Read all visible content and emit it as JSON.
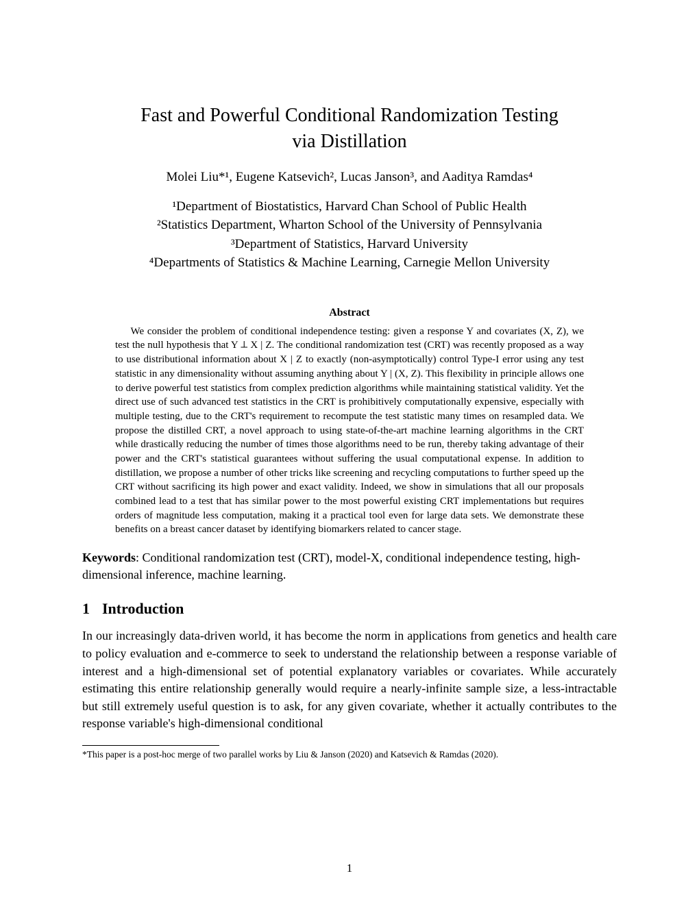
{
  "title_line1": "Fast and Powerful Conditional Randomization Testing",
  "title_line2": "via Distillation",
  "authors_html": "Molei Liu*¹, Eugene Katsevich², Lucas Janson³, and Aaditya Ramdas⁴",
  "affiliations": {
    "a1": "¹Department of Biostatistics, Harvard Chan School of Public Health",
    "a2": "²Statistics Department, Wharton School of the University of Pennsylvania",
    "a3": "³Department of Statistics, Harvard University",
    "a4": "⁴Departments of Statistics & Machine Learning, Carnegie Mellon University"
  },
  "abstract_heading": "Abstract",
  "abstract_text": "We consider the problem of conditional independence testing: given a response Y and covariates (X, Z), we test the null hypothesis that Y ⟂ X | Z. The conditional randomization test (CRT) was recently proposed as a way to use distributional information about X | Z to exactly (non-asymptotically) control Type-I error using any test statistic in any dimensionality without assuming anything about Y | (X, Z). This flexibility in principle allows one to derive powerful test statistics from complex prediction algorithms while maintaining statistical validity. Yet the direct use of such advanced test statistics in the CRT is prohibitively computationally expensive, especially with multiple testing, due to the CRT's requirement to recompute the test statistic many times on resampled data. We propose the distilled CRT, a novel approach to using state-of-the-art machine learning algorithms in the CRT while drastically reducing the number of times those algorithms need to be run, thereby taking advantage of their power and the CRT's statistical guarantees without suffering the usual computational expense. In addition to distillation, we propose a number of other tricks like screening and recycling computations to further speed up the CRT without sacrificing its high power and exact validity. Indeed, we show in simulations that all our proposals combined lead to a test that has similar power to the most powerful existing CRT implementations but requires orders of magnitude less computation, making it a practical tool even for large data sets. We demonstrate these benefits on a breast cancer dataset by identifying biomarkers related to cancer stage.",
  "keywords_label": "Keywords",
  "keywords_text": ": Conditional randomization test (CRT), model-X, conditional independence testing, high-dimensional inference, machine learning.",
  "section1_number": "1",
  "section1_title": "Introduction",
  "intro_text": "In our increasingly data-driven world, it has become the norm in applications from genetics and health care to policy evaluation and e-commerce to seek to understand the relationship between a response variable of interest and a high-dimensional set of potential explanatory variables or covariates. While accurately estimating this entire relationship generally would require a nearly-infinite sample size, a less-intractable but still extremely useful question is to ask, for any given covariate, whether it actually contributes to the response variable's high-dimensional conditional",
  "footnote_text": "*This paper is a post-hoc merge of two parallel works by Liu & Janson (2020) and Katsevich & Ramdas (2020).",
  "page_number": "1",
  "colors": {
    "text": "#000000",
    "background": "#ffffff"
  },
  "fonts": {
    "family": "Times New Roman",
    "title_size_pt": 21,
    "author_size_pt": 14,
    "abstract_size_pt": 11,
    "body_size_pt": 13.5,
    "footnote_size_pt": 10
  }
}
